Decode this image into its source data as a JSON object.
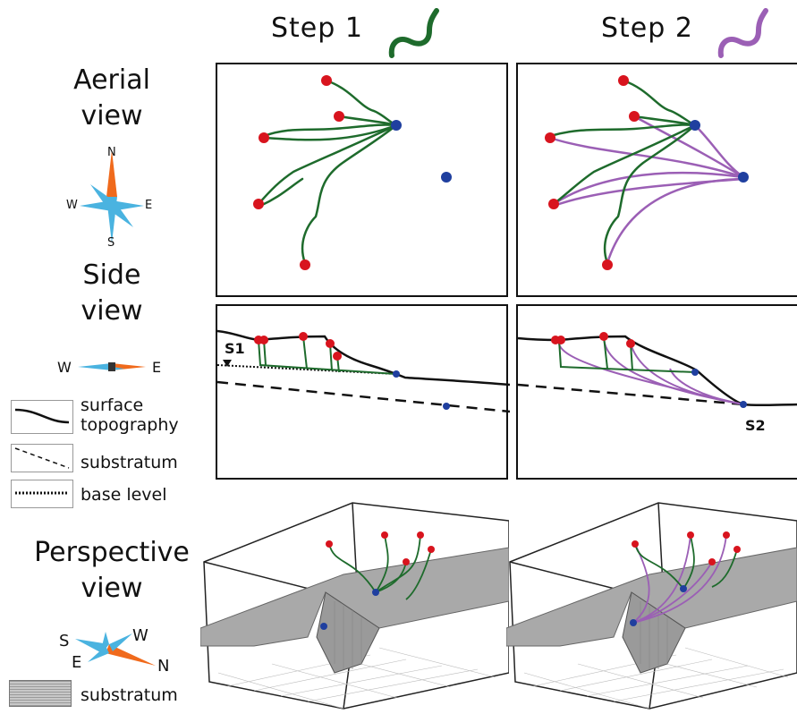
{
  "steps": {
    "step1": "Step 1",
    "step2": "Step 2",
    "step1_color": "#1e6b2c",
    "step2_color": "#9b5fb5"
  },
  "rows": {
    "aerial": [
      "Aerial",
      "view"
    ],
    "side": [
      "Side",
      "view"
    ],
    "perspective": [
      "Perspective",
      "view"
    ]
  },
  "compass_aerial": {
    "n": "N",
    "e": "E",
    "s": "S",
    "w": "W"
  },
  "compass_side": {
    "w": "W",
    "e": "E"
  },
  "compass_perspective": {
    "s": "S",
    "w": "W",
    "e": "E",
    "n": "N"
  },
  "legend": {
    "surface": [
      "surface",
      "topography"
    ],
    "substratum": "substratum",
    "base_level": "base level",
    "substratum_persp": "substratum"
  },
  "labels": {
    "s1": "S1",
    "s2": "S2"
  },
  "colors": {
    "node_red": "#d8141e",
    "node_blue": "#1f3f9f",
    "compass_orange": "#f06a1c",
    "compass_blue": "#4ab3e0",
    "surface_gray": "#a9a9a9"
  }
}
